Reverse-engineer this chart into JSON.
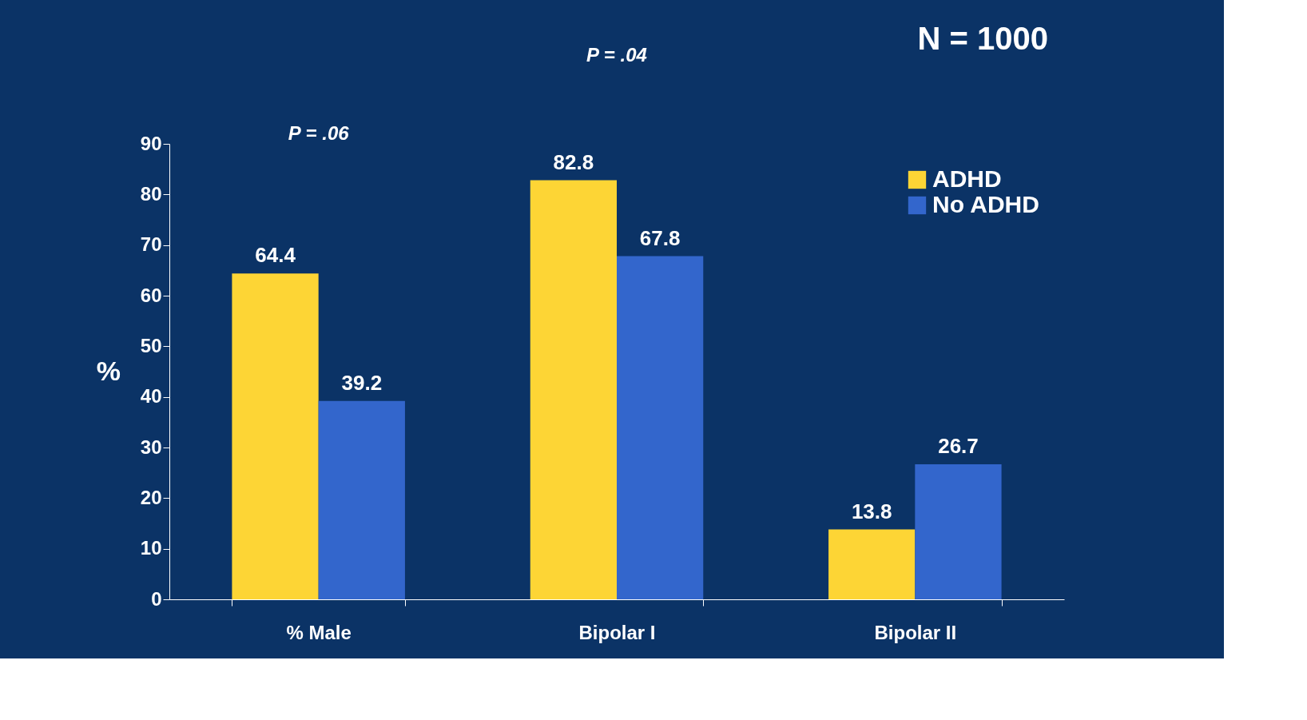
{
  "chart_data": {
    "type": "bar",
    "categories": [
      "% Male",
      "Bipolar I",
      "Bipolar II"
    ],
    "series": [
      {
        "name": "ADHD",
        "color": "#fdd535",
        "values": [
          64.4,
          82.8,
          13.8
        ]
      },
      {
        "name": "No ADHD",
        "color": "#3366cc",
        "values": [
          39.2,
          67.8,
          26.7
        ]
      }
    ],
    "ylabel": "%",
    "ylim": [
      0,
      90
    ],
    "yticks": [
      0,
      10,
      20,
      30,
      40,
      50,
      60,
      70,
      80,
      90
    ],
    "annotations": [
      "N = 1000",
      "P = .06",
      "P = .04"
    ],
    "data_labels": true,
    "grid": false,
    "legend": "top right"
  }
}
